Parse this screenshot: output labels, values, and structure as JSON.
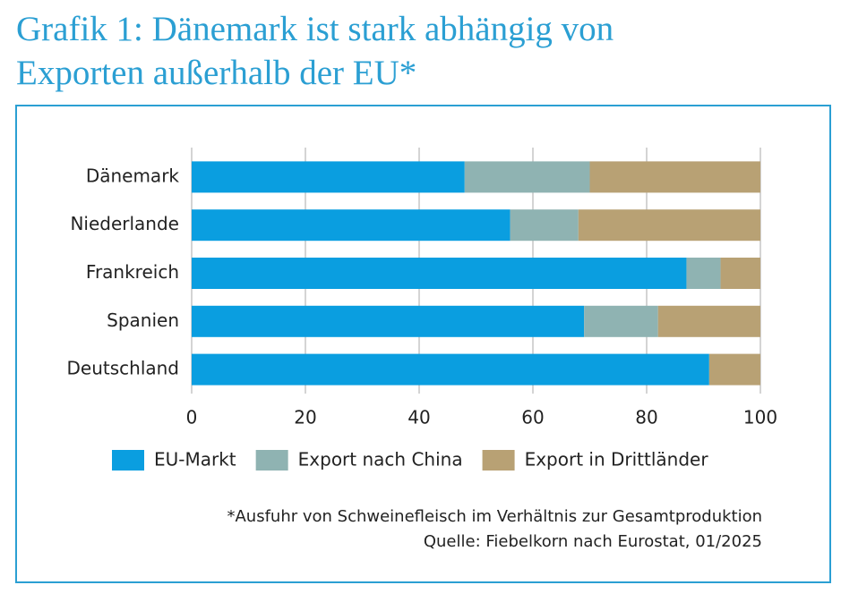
{
  "chart_data": {
    "type": "stacked-bar-horizontal",
    "title": "Grafik 1: Dänemark ist stark abhängig von Exporten außerhalb der EU*",
    "categories": [
      "Dänemark",
      "Niederlande",
      "Frankreich",
      "Spanien",
      "Deutschland"
    ],
    "series": [
      {
        "name": "EU-Markt",
        "color": "#0a9ee0",
        "values": [
          48,
          56,
          87,
          69,
          91
        ]
      },
      {
        "name": "Export nach China",
        "color": "#8fb3b2",
        "values": [
          22,
          12,
          6,
          13,
          0
        ]
      },
      {
        "name": "Export in Drittländer",
        "color": "#b8a174",
        "values": [
          30,
          32,
          7,
          18,
          9
        ]
      }
    ],
    "xlim": [
      0,
      100
    ],
    "xticks": [
      0,
      20,
      40,
      60,
      80,
      100
    ],
    "grid": true,
    "note": "*Ausfuhr von Schweinefleisch im Verhältnis zur Gesamtproduktion",
    "source": "Quelle: Fiebelkorn nach Eurostat, 01/2025"
  }
}
